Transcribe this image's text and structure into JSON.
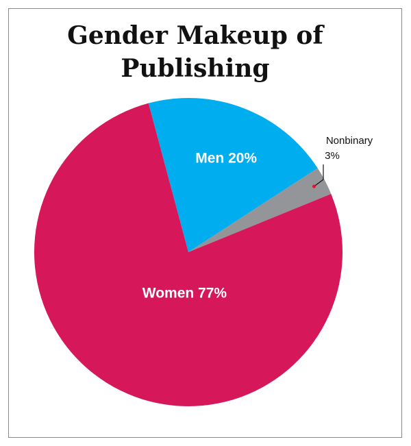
{
  "chart_data": {
    "type": "pie",
    "title": "Gender Makeup of Publishing",
    "categories": [
      "Men",
      "Nonbinary",
      "Women"
    ],
    "values": [
      20,
      3,
      77
    ],
    "value_labels": [
      "20%",
      "3%",
      "77%"
    ],
    "colors": [
      "#00aeef",
      "#939598",
      "#d6175a"
    ]
  }
}
